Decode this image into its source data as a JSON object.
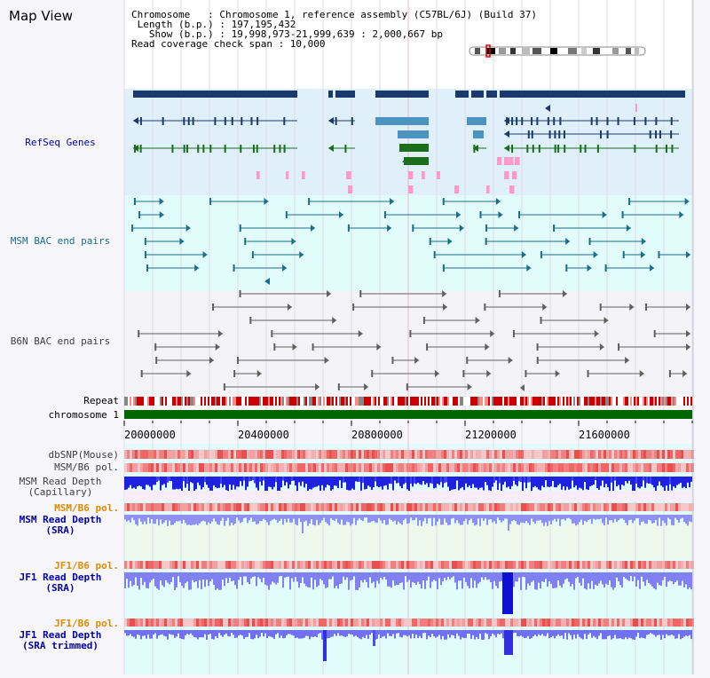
{
  "title": "Map View",
  "info": {
    "chromosome": "Chromosome   : Chromosome 1, reference assembly (C57BL/6J) (Build 37)",
    "length": " Length (b.p.) : 197,195,432",
    "show": "   Show (b.p.) : 19,998,973-21,999,639 : 2,000,667 bp",
    "coverage": "Read coverage check span : 10,000"
  },
  "tracks": {
    "refseq": "RefSeq Genes",
    "msm_bac": "MSM BAC end pairs",
    "b6n_bac": "B6N BAC end pairs",
    "repeat": "Repeat",
    "chromosome": "chromosome 1",
    "dbsnp": "dbSNP(Mouse)",
    "msm_b6_pol": "MSM/B6 pol.",
    "msm_depth_cap_1": "MSM Read Depth",
    "msm_depth_cap_2": "(Capillary)",
    "msm_b6_pol2": "MSM/B6 pol.",
    "msm_depth_sra_1": "MSM Read Depth",
    "msm_depth_sra_2": "(SRA)",
    "jf1_b6_pol": "JF1/B6 pol.",
    "jf1_depth_sra_1": "JF1 Read Depth",
    "jf1_depth_sra_2": "(SRA)",
    "jf1_b6_pol2": "JF1/B6 pol.",
    "jf1_depth_trim_1": "JF1 Read Depth",
    "jf1_depth_trim_2": "(SRA trimmed)"
  },
  "axis_ticks": [
    "20000000",
    "20400000",
    "20800000",
    "21200000",
    "21600000"
  ],
  "colors": {
    "refseq_bg": "#dff0fa",
    "lower_bg": "#e2fcfc",
    "gene_dark": "#1a3a6e",
    "gene_mid": "#4a94bf",
    "gene_green": "#1a6e1a",
    "msm_bac": "#1a6e8c",
    "b6n_bac": "#606060",
    "chromosome": "#006600",
    "label_blue": "#0000aa",
    "label_orange": "#e08a00",
    "label_gray": "#404040"
  }
}
